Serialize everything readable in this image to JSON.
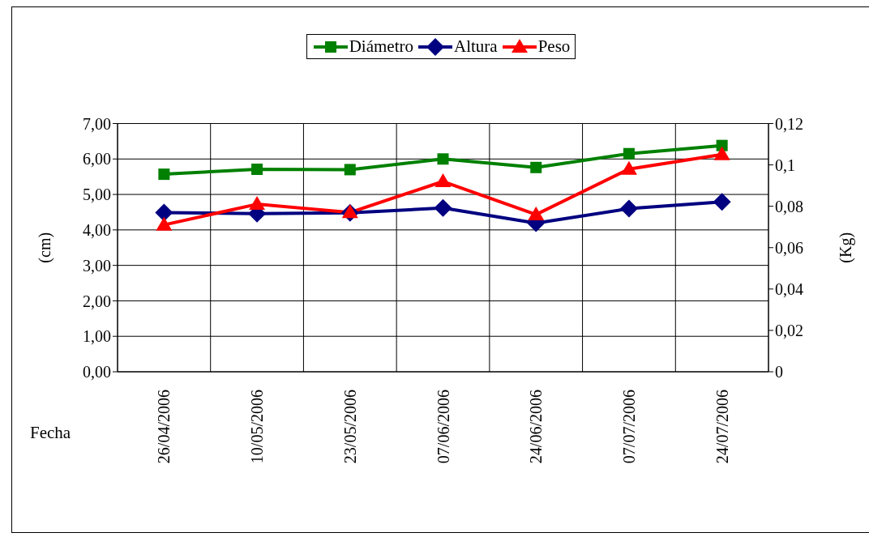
{
  "chart_data": {
    "type": "line",
    "xlabel": "Fecha",
    "ylabel": "(cm)",
    "y2label": "(Kg)",
    "categories": [
      "26/04/2006",
      "10/05/2006",
      "23/05/2006",
      "07/06/2006",
      "24/06/2006",
      "07/07/2006",
      "24/07/2006"
    ],
    "series": [
      {
        "name": "Diámetro",
        "color": "#008000",
        "marker": "square",
        "values": [
          5.57,
          5.71,
          5.7,
          6.0,
          5.76,
          6.15,
          6.38
        ]
      },
      {
        "name": "Altura",
        "color": "#000080",
        "marker": "diamond",
        "values": [
          4.49,
          4.46,
          4.48,
          4.62,
          4.19,
          4.6,
          4.79
        ]
      },
      {
        "name": "Peso",
        "color": "#ff0000",
        "marker": "triangle",
        "axis": "y2",
        "values": [
          0.071,
          0.081,
          0.077,
          0.092,
          0.076,
          0.098,
          0.105
        ]
      }
    ],
    "ylim": [
      0,
      7
    ],
    "yticks": [
      {
        "value": 0,
        "label": "0,00"
      },
      {
        "value": 1,
        "label": "1,00"
      },
      {
        "value": 2,
        "label": "2,00"
      },
      {
        "value": 3,
        "label": "3,00"
      },
      {
        "value": 4,
        "label": "4,00"
      },
      {
        "value": 5,
        "label": "5,00"
      },
      {
        "value": 6,
        "label": "6,00"
      },
      {
        "value": 7,
        "label": "7,00"
      }
    ],
    "y2lim": [
      0,
      0.12
    ],
    "y2ticks": [
      0,
      {
        "value": 0.02,
        "label": "0,02"
      },
      {
        "value": 0.04,
        "label": "0,04"
      },
      {
        "value": 0.06,
        "label": "0,06"
      },
      {
        "value": 0.08,
        "label": "0,08"
      },
      {
        "value": 0.1,
        "label": "0,1"
      },
      {
        "value": 0.12,
        "label": "0,12"
      }
    ],
    "grid": true,
    "legend": "top",
    "line_style": "solid"
  }
}
